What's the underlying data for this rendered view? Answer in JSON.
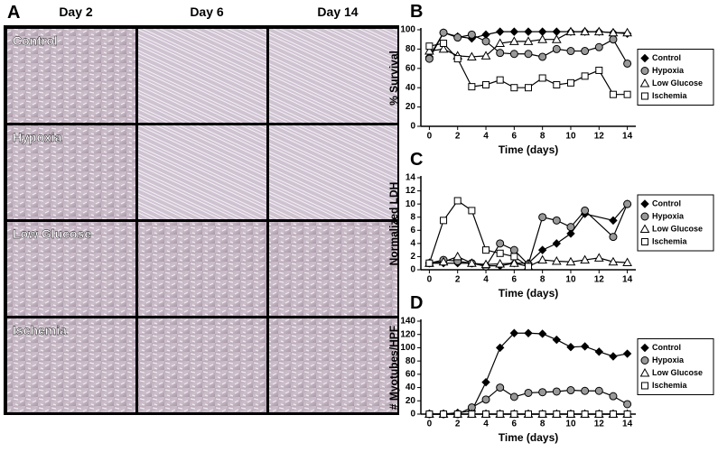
{
  "panel_a": {
    "label": "A",
    "columns": [
      "Day 2",
      "Day 6",
      "Day 14"
    ],
    "rows": [
      "Control",
      "Hypoxia",
      "Low Glucose",
      "Ischemia"
    ]
  },
  "chart_data": [
    {
      "type": "line",
      "label": "B",
      "ylabel": "% Survival",
      "xlabel": "Time (days)",
      "x": [
        0,
        1,
        2,
        3,
        4,
        5,
        6,
        7,
        8,
        9,
        10,
        11,
        12,
        13,
        14
      ],
      "xlim": [
        -0.6,
        14.6
      ],
      "xticks": [
        0,
        2,
        4,
        6,
        8,
        10,
        12,
        14
      ],
      "ylim": [
        0,
        100
      ],
      "yticks": [
        0,
        20,
        40,
        60,
        80,
        100
      ],
      "series": [
        {
          "name": "Control",
          "color": "#000000",
          "marker": "diamond",
          "values": [
            72,
            97,
            93,
            91,
            95,
            98,
            98,
            98,
            98,
            98,
            98,
            98,
            98,
            97,
            96
          ]
        },
        {
          "name": "Hypoxia",
          "color": "#999999",
          "marker": "circle",
          "values": [
            70,
            97,
            92,
            95,
            88,
            76,
            75,
            75,
            72,
            80,
            78,
            78,
            82,
            90,
            65
          ]
        },
        {
          "name": "Low Glucose",
          "color": "#ffffff",
          "marker": "triangle",
          "values": [
            78,
            80,
            73,
            72,
            73,
            86,
            88,
            88,
            90,
            90,
            98,
            98,
            98,
            97,
            97
          ]
        },
        {
          "name": "Ischemia",
          "color": "#ffffff",
          "marker": "square",
          "values": [
            83,
            86,
            70,
            41,
            43,
            48,
            40,
            40,
            50,
            43,
            45,
            52,
            58,
            33,
            33
          ]
        }
      ]
    },
    {
      "type": "line",
      "label": "C",
      "ylabel": "Normalized LDH",
      "xlabel": "Time (days)",
      "x": [
        0,
        1,
        2,
        3,
        4,
        5,
        6,
        7,
        8,
        9,
        10,
        11,
        12,
        13,
        14
      ],
      "xlim": [
        -0.6,
        14.6
      ],
      "xticks": [
        0,
        2,
        4,
        6,
        8,
        10,
        12,
        14
      ],
      "ylim": [
        0,
        14
      ],
      "yticks": [
        0,
        2,
        4,
        6,
        8,
        10,
        12,
        14
      ],
      "series": [
        {
          "name": "Control",
          "color": "#000000",
          "marker": "diamond",
          "x": [
            0,
            1,
            2,
            3,
            4,
            5,
            6,
            7,
            8,
            9,
            10,
            11,
            13,
            14
          ],
          "values": [
            1,
            1,
            1,
            1,
            0.6,
            0.6,
            1,
            1,
            3,
            4,
            5.5,
            8.5,
            7.5,
            10
          ]
        },
        {
          "name": "Hypoxia",
          "color": "#999999",
          "marker": "circle",
          "x": [
            0,
            1,
            2,
            3,
            4,
            5,
            6,
            7,
            8,
            9,
            10,
            11,
            13,
            14
          ],
          "values": [
            1,
            1.5,
            1.3,
            1,
            0.5,
            4,
            3,
            0.8,
            8,
            7.5,
            6.5,
            9,
            5,
            10
          ]
        },
        {
          "name": "Low Glucose",
          "color": "#ffffff",
          "marker": "triangle",
          "x": [
            0,
            1,
            2,
            3,
            4,
            5,
            6,
            7,
            8,
            9,
            10,
            11,
            12,
            13,
            14
          ],
          "values": [
            1,
            1.2,
            2,
            1,
            0.8,
            0.9,
            1,
            0.5,
            1.5,
            1.3,
            1.2,
            1.5,
            1.8,
            1.2,
            1.1
          ]
        },
        {
          "name": "Ischemia",
          "color": "#ffffff",
          "marker": "square",
          "x": [
            0,
            1,
            2,
            3,
            4,
            5,
            6,
            7
          ],
          "values": [
            1,
            7.5,
            10.5,
            9,
            3,
            2.5,
            2,
            0.5
          ]
        }
      ]
    },
    {
      "type": "line",
      "label": "D",
      "ylabel": "# Myotubes/HPF",
      "xlabel": "Time (days)",
      "x": [
        0,
        1,
        2,
        3,
        4,
        5,
        6,
        7,
        8,
        9,
        10,
        11,
        12,
        13,
        14
      ],
      "xlim": [
        -0.6,
        14.6
      ],
      "xticks": [
        0,
        2,
        4,
        6,
        8,
        10,
        12,
        14
      ],
      "ylim": [
        0,
        140
      ],
      "yticks": [
        0,
        20,
        40,
        60,
        80,
        100,
        120,
        140
      ],
      "series": [
        {
          "name": "Control",
          "color": "#000000",
          "marker": "diamond",
          "values": [
            0,
            0,
            2,
            5,
            48,
            100,
            122,
            122,
            121,
            112,
            101,
            102,
            94,
            87,
            91
          ]
        },
        {
          "name": "Hypoxia",
          "color": "#999999",
          "marker": "circle",
          "values": [
            0,
            0,
            0,
            10,
            22,
            40,
            26,
            32,
            33,
            34,
            36,
            35,
            35,
            27,
            15
          ]
        },
        {
          "name": "Low Glucose",
          "color": "#ffffff",
          "marker": "triangle",
          "values": [
            0,
            0,
            0,
            0,
            0,
            0,
            0,
            0,
            0,
            0,
            0,
            0,
            0,
            0,
            0
          ]
        },
        {
          "name": "Ischemia",
          "color": "#ffffff",
          "marker": "square",
          "values": [
            0,
            0,
            0,
            0,
            0,
            0,
            0,
            0,
            0,
            0,
            0,
            0,
            0,
            0,
            0
          ]
        }
      ]
    }
  ]
}
